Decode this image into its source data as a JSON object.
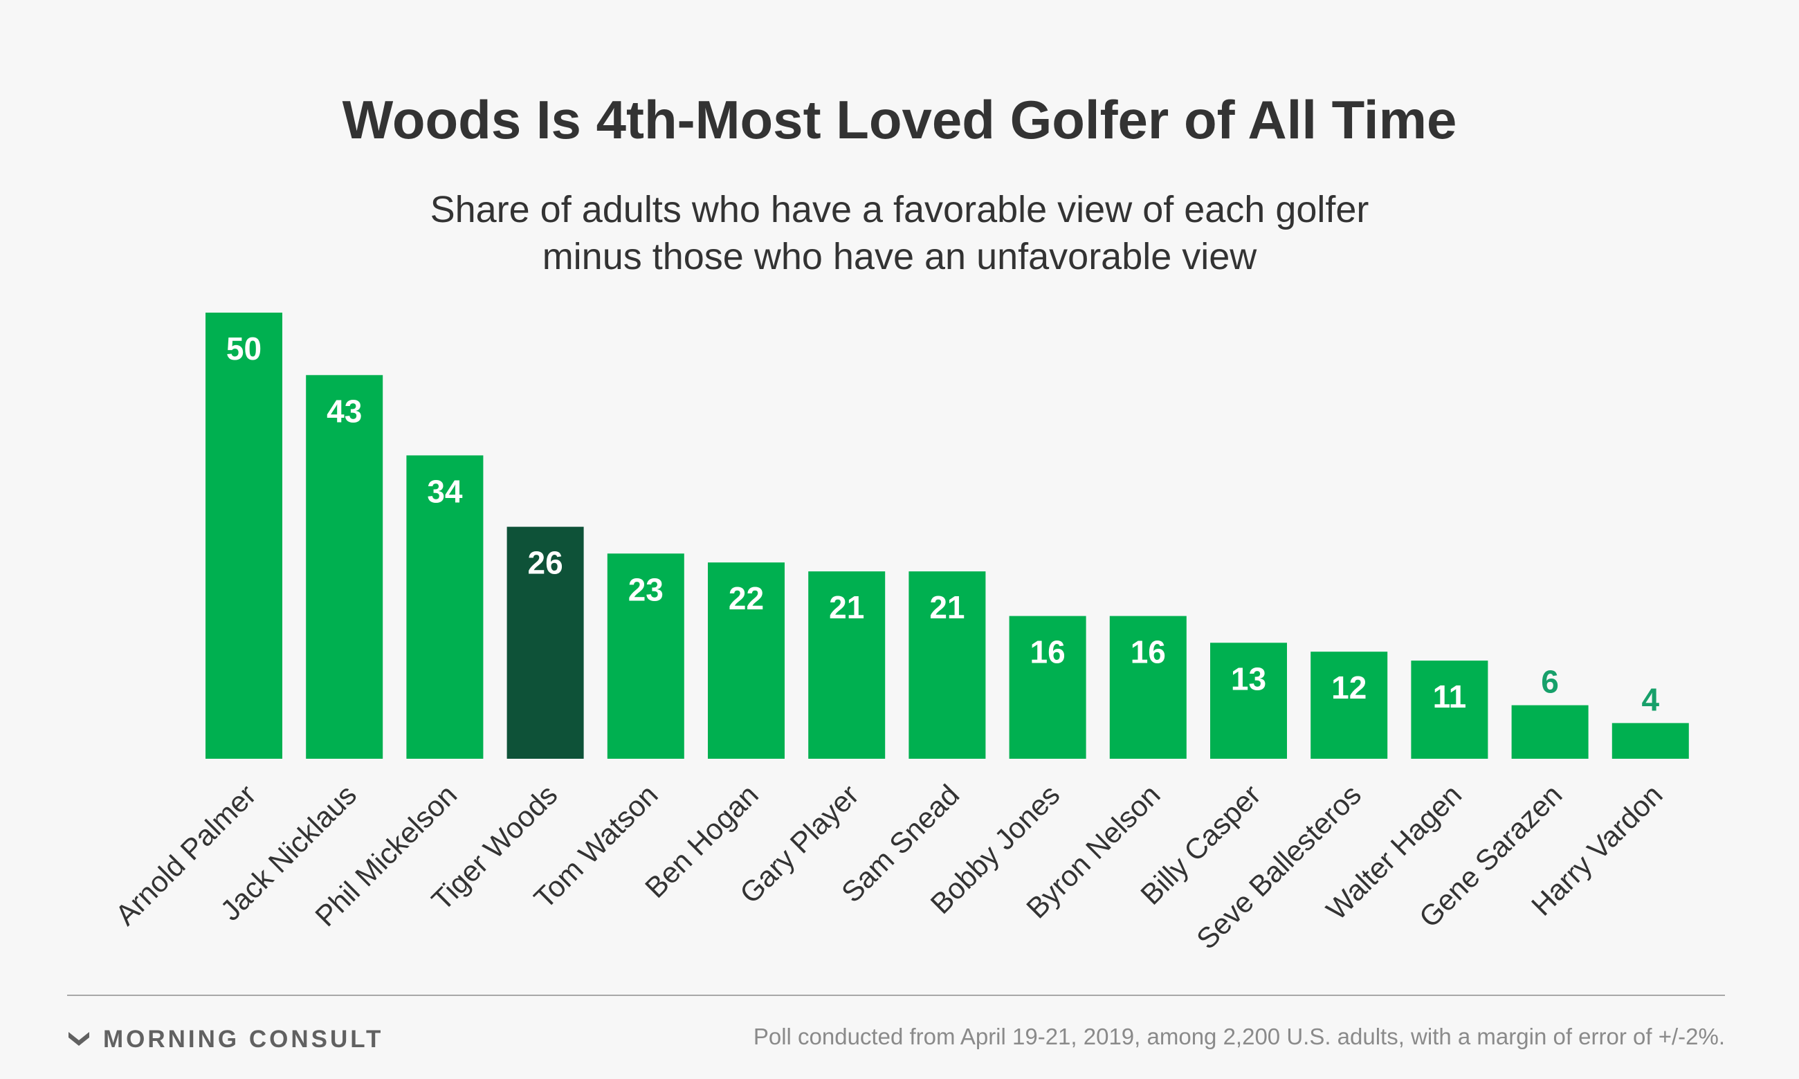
{
  "chart_data": {
    "type": "bar",
    "title": "Woods Is 4th-Most Loved Golfer of All Time",
    "subtitle_lines": [
      "Share of adults who have a favorable view of each golfer",
      "minus those who have an unfavorable view"
    ],
    "categories": [
      "Arnold Palmer",
      "Jack Nicklaus",
      "Phil Mickelson",
      "Tiger Woods",
      "Tom Watson",
      "Ben Hogan",
      "Gary Player",
      "Sam Snead",
      "Bobby Jones",
      "Byron Nelson",
      "Billy  Casper",
      "Seve Ballesteros",
      "Walter Hagen",
      "Gene Sarazen",
      "Harry Vardon"
    ],
    "values": [
      50,
      43,
      34,
      26,
      23,
      22,
      21,
      21,
      16,
      16,
      13,
      12,
      11,
      6,
      4
    ],
    "highlight": "Tiger Woods",
    "ylim": [
      0,
      50
    ],
    "grid": false,
    "colors": {
      "bar": "#00b050",
      "highlight": "#0e5238",
      "label_inside": "#ffffff",
      "label_outside": "#17a06a"
    }
  },
  "footer": {
    "brand": "MORNING CONSULT",
    "brand_logo": "morning-consult-chevron-logo",
    "note": "Poll conducted from April 19-21, 2019, among 2,200 U.S. adults, with a margin of error of +/-2%."
  }
}
